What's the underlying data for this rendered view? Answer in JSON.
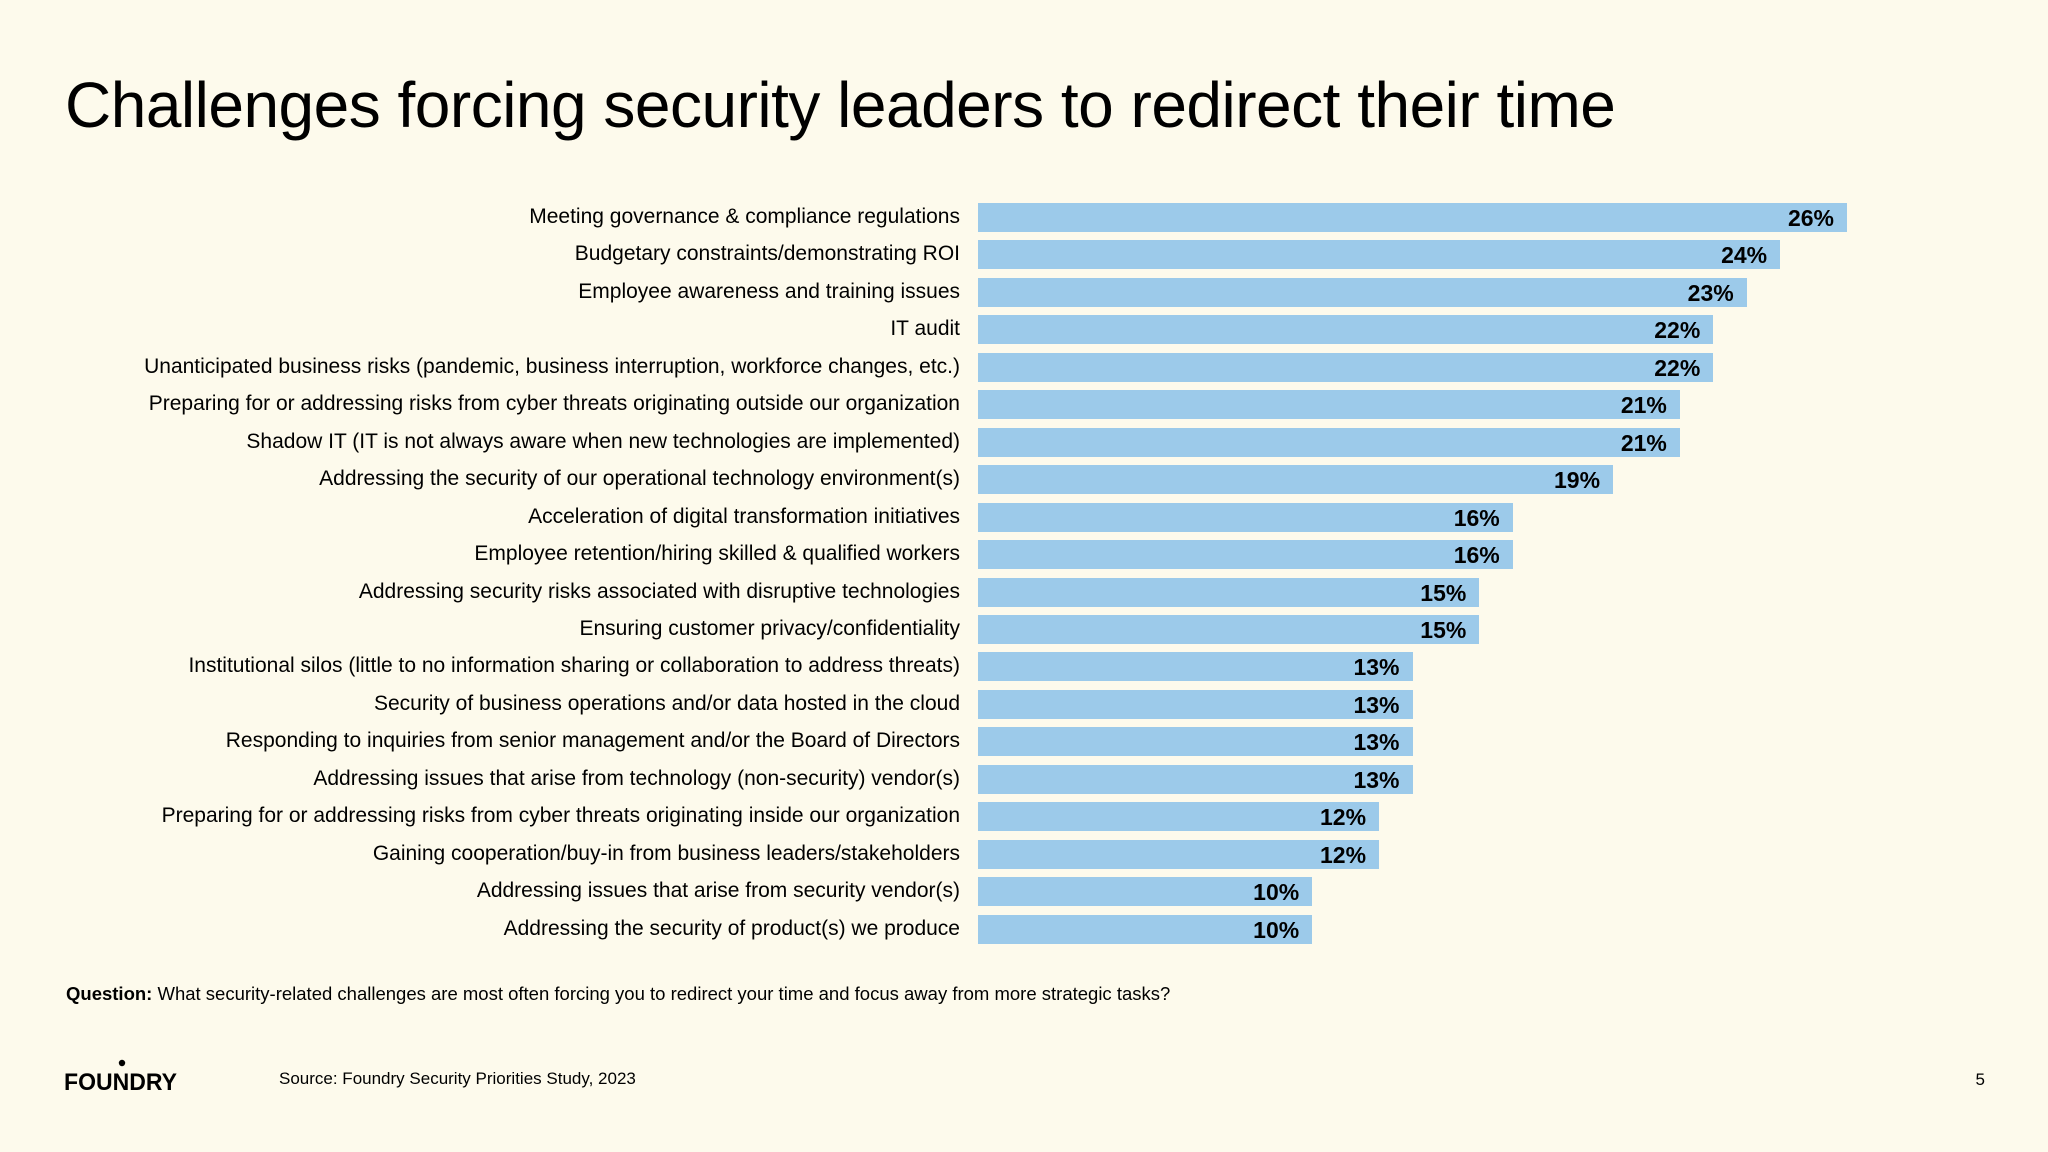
{
  "slide": {
    "title": "Challenges forcing security leaders to redirect their time",
    "question_label": "Question:",
    "question_text": "What security-related challenges are most often forcing you to redirect your time and focus away from more strategic tasks?",
    "source": "Source: Foundry Security Priorities Study, 2023",
    "page_number": "5",
    "logo_text": "FOUNDRY"
  },
  "colors": {
    "background": "#fdfaec",
    "bar": "#9ccaea",
    "text": "#000000"
  },
  "chart_data": {
    "type": "bar",
    "orientation": "horizontal",
    "categories": [
      "Meeting governance & compliance regulations",
      "Budgetary constraints/demonstrating ROI",
      "Employee awareness and training issues",
      "IT audit",
      "Unanticipated business risks (pandemic, business interruption, workforce changes, etc.)",
      "Preparing for or addressing risks from cyber threats originating outside our organization",
      "Shadow IT (IT is not always aware when new technologies are implemented)",
      "Addressing the security of our operational technology environment(s)",
      "Acceleration of digital transformation initiatives",
      "Employee retention/hiring skilled & qualified workers",
      "Addressing security risks associated with disruptive technologies",
      "Ensuring customer privacy/confidentiality",
      "Institutional silos (little to no information sharing or collaboration to address threats)",
      "Security of business operations and/or data hosted in the cloud",
      "Responding to inquiries from senior management and/or the Board of Directors",
      "Addressing issues that arise from technology (non-security) vendor(s)",
      "Preparing for or addressing risks from cyber threats originating inside our organization",
      "Gaining cooperation/buy-in from business leaders/stakeholders",
      "Addressing issues that arise from security vendor(s)",
      "Addressing the security of product(s) we produce"
    ],
    "values": [
      26,
      24,
      23,
      22,
      22,
      21,
      21,
      19,
      16,
      16,
      15,
      15,
      13,
      13,
      13,
      13,
      12,
      12,
      10,
      10
    ],
    "value_labels": [
      "26%",
      "24%",
      "23%",
      "22%",
      "22%",
      "21%",
      "21%",
      "19%",
      "16%",
      "16%",
      "15%",
      "15%",
      "13%",
      "13%",
      "13%",
      "13%",
      "12%",
      "12%",
      "10%",
      "10%"
    ],
    "unit": "%",
    "xlim": [
      0,
      26
    ],
    "grid": false,
    "legend": "none"
  }
}
